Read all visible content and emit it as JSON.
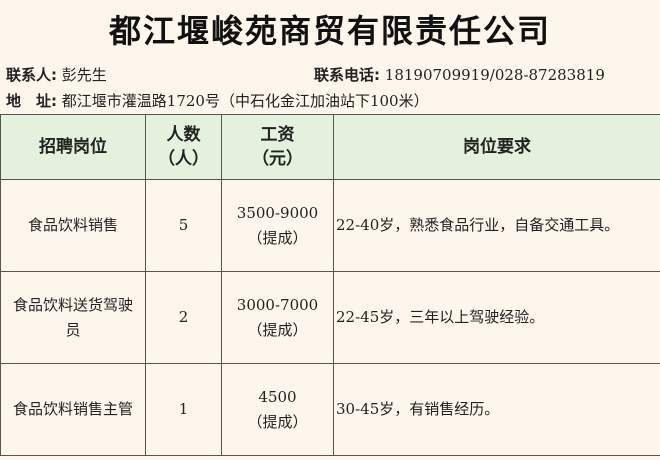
{
  "title": "都江堰峻苑商贸有限责任公司",
  "contact": {
    "person_label": "联系人:",
    "person": "彭先生",
    "phone_label": "联系电话:",
    "phone": "18190709919/028-87283819",
    "address_label": "地　址:",
    "address": "都江堰市灌温路1720号（中石化金江加油站下100米）"
  },
  "table": {
    "headers": [
      "招聘岗位",
      "人数",
      "（人）",
      "工资",
      "（元）",
      "岗位要求"
    ],
    "rows": [
      {
        "position": "食品饮料销售",
        "count": "5",
        "salary": "3500-9000",
        "salary_note": "（提成）",
        "requirement": "22-40岁，熟悉食品行业，自备交通工具。"
      },
      {
        "position": "食品饮料送货驾驶员",
        "count": "2",
        "salary": "3000-7000",
        "salary_note": "（提成）",
        "requirement": "22-45岁，三年以上驾驶经验。"
      },
      {
        "position": "食品饮料销售主管",
        "count": "1",
        "salary": "4500",
        "salary_note": "（提成）",
        "requirement": "30-45岁，有销售经历。"
      }
    ]
  }
}
